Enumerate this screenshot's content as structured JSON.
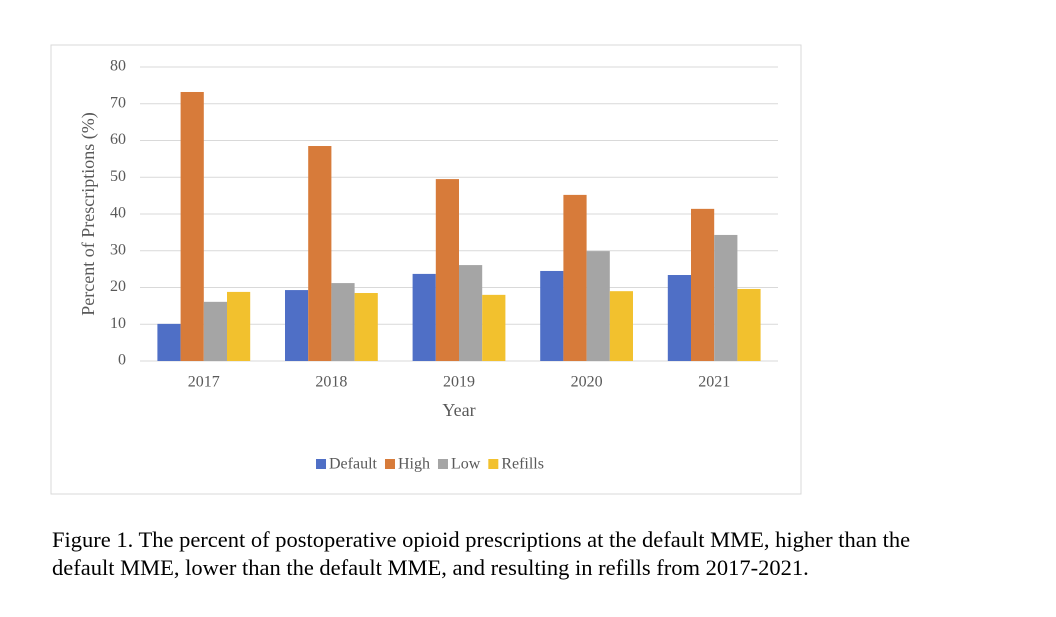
{
  "chart_data": {
    "type": "bar",
    "y_label": "Percent of Prescriptions (%)",
    "x_label": "Year",
    "categories": [
      "2017",
      "2018",
      "2019",
      "2020",
      "2021"
    ],
    "series": [
      {
        "name": "Default",
        "color": "#4f6fc6",
        "values": [
          10.1,
          19.3,
          23.7,
          24.5,
          23.4
        ]
      },
      {
        "name": "High",
        "color": "#d77b3a",
        "values": [
          73.2,
          58.5,
          49.5,
          45.2,
          41.4
        ]
      },
      {
        "name": "Low",
        "color": "#a5a5a5",
        "values": [
          16.1,
          21.2,
          26.1,
          29.9,
          34.3
        ]
      },
      {
        "name": "Refills",
        "color": "#f2c12e",
        "values": [
          18.8,
          18.5,
          18.0,
          19.0,
          19.6
        ]
      }
    ],
    "ylim": [
      0,
      80
    ],
    "yticks": [
      0,
      10,
      20,
      30,
      40,
      50,
      60,
      70,
      80
    ],
    "grid": true,
    "legend": "bottom"
  },
  "caption": [
    "Figure 1. The percent of postoperative opioid prescriptions at the default MME, higher than the",
    "default MME, lower than the default MME, and resulting in refills from 2017-2021."
  ]
}
